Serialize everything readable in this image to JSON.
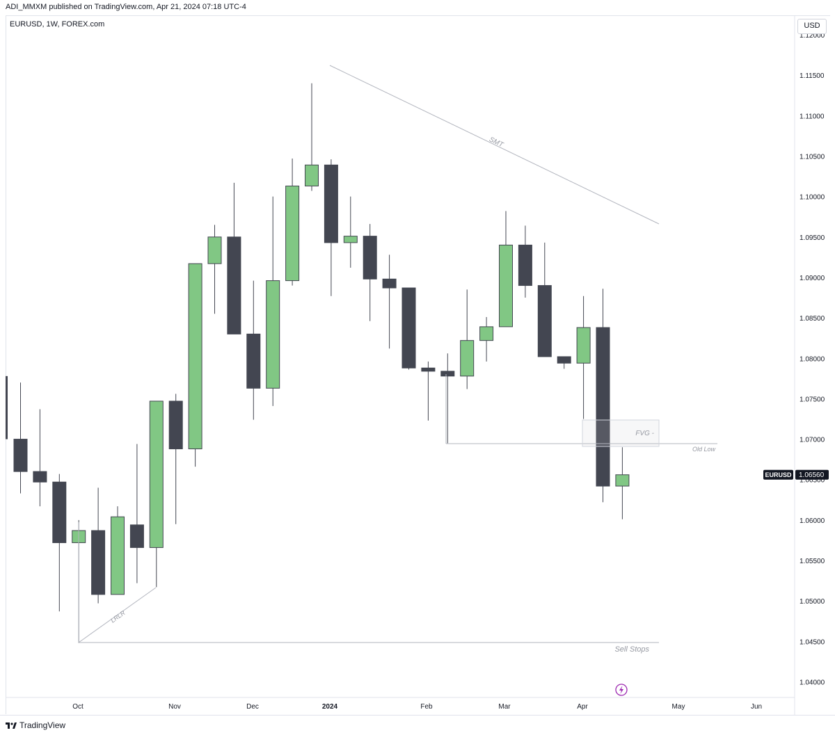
{
  "header": {
    "published_text": "ADI_MMXM published on TradingView.com, Apr 21, 2024 07:18 UTC-4",
    "symbol_legend": "EURUSD, 1W, FOREX.com"
  },
  "price_axis": {
    "currency": "USD",
    "ticks": [
      "1.12000",
      "1.11500",
      "1.11000",
      "1.10500",
      "1.10000",
      "1.09500",
      "1.09000",
      "1.08500",
      "1.08000",
      "1.07500",
      "1.07000",
      "1.06500",
      "1.06000",
      "1.05500",
      "1.05000",
      "1.04500",
      "1.04000"
    ],
    "last_price_label": "1.06560",
    "last_price_symbol": "EURUSD"
  },
  "time_axis": {
    "labels": [
      "Oct",
      "Nov",
      "Dec",
      "2024",
      "Feb",
      "Mar",
      "Apr",
      "May",
      "Jun"
    ],
    "bold_label": "2024"
  },
  "footer": {
    "brand": "TradingView"
  },
  "colors": {
    "bull": "#81c784",
    "bear": "#434651",
    "wick": "#434651",
    "grid": "#ffffff",
    "annotation": "#b2b5be"
  },
  "chart_data": {
    "type": "candlestick",
    "ylim": [
      1.0395,
      1.1205
    ],
    "candles": [
      {
        "o": 1.0778,
        "h": 1.0778,
        "l": 1.07,
        "c": 1.07
      },
      {
        "o": 1.07,
        "h": 1.077,
        "l": 1.0633,
        "c": 1.066
      },
      {
        "o": 1.066,
        "h": 1.0737,
        "l": 1.0617,
        "c": 1.0647
      },
      {
        "o": 1.0647,
        "h": 1.0657,
        "l": 1.0487,
        "c": 1.0572
      },
      {
        "o": 1.0572,
        "h": 1.06,
        "l": 1.0448,
        "c": 1.0587
      },
      {
        "o": 1.0587,
        "h": 1.064,
        "l": 1.0497,
        "c": 1.0508
      },
      {
        "o": 1.0508,
        "h": 1.0617,
        "l": 1.0508,
        "c": 1.0604
      },
      {
        "o": 1.0594,
        "h": 1.0694,
        "l": 1.0522,
        "c": 1.0566
      },
      {
        "o": 1.0566,
        "h": 1.0747,
        "l": 1.0517,
        "c": 1.0747
      },
      {
        "o": 1.0747,
        "h": 1.0756,
        "l": 1.0595,
        "c": 1.0688
      },
      {
        "o": 1.0688,
        "h": 1.0917,
        "l": 1.0666,
        "c": 1.0917
      },
      {
        "o": 1.0917,
        "h": 1.0965,
        "l": 1.0855,
        "c": 1.095
      },
      {
        "o": 1.095,
        "h": 1.1017,
        "l": 1.083,
        "c": 1.083
      },
      {
        "o": 1.083,
        "h": 1.0896,
        "l": 1.0724,
        "c": 1.0763
      },
      {
        "o": 1.0763,
        "h": 1.1,
        "l": 1.0741,
        "c": 1.0896
      },
      {
        "o": 1.0896,
        "h": 1.1047,
        "l": 1.089,
        "c": 1.1013
      },
      {
        "o": 1.1013,
        "h": 1.114,
        "l": 1.1007,
        "c": 1.1039
      },
      {
        "o": 1.1039,
        "h": 1.1046,
        "l": 1.0877,
        "c": 1.0943
      },
      {
        "o": 1.0943,
        "h": 1.1,
        "l": 1.0912,
        "c": 1.0951
      },
      {
        "o": 1.0951,
        "h": 1.0966,
        "l": 1.0846,
        "c": 1.0898
      },
      {
        "o": 1.0898,
        "h": 1.0928,
        "l": 1.0812,
        "c": 1.0887
      },
      {
        "o": 1.0887,
        "h": 1.0887,
        "l": 1.0786,
        "c": 1.0788
      },
      {
        "o": 1.0788,
        "h": 1.0796,
        "l": 1.0723,
        "c": 1.0784
      },
      {
        "o": 1.0784,
        "h": 1.0806,
        "l": 1.0695,
        "c": 1.0778
      },
      {
        "o": 1.0778,
        "h": 1.0885,
        "l": 1.0762,
        "c": 1.0822
      },
      {
        "o": 1.0822,
        "h": 1.0851,
        "l": 1.0796,
        "c": 1.0839
      },
      {
        "o": 1.0839,
        "h": 1.0982,
        "l": 1.0839,
        "c": 1.094
      },
      {
        "o": 1.094,
        "h": 1.0964,
        "l": 1.0875,
        "c": 1.089
      },
      {
        "o": 1.089,
        "h": 1.0943,
        "l": 1.0802,
        "c": 1.0802
      },
      {
        "o": 1.0802,
        "h": 1.0802,
        "l": 1.0787,
        "c": 1.0794
      },
      {
        "o": 1.0794,
        "h": 1.0877,
        "l": 1.0725,
        "c": 1.0838
      },
      {
        "o": 1.0838,
        "h": 1.0886,
        "l": 1.0622,
        "c": 1.0642
      },
      {
        "o": 1.0642,
        "h": 1.069,
        "l": 1.0601,
        "c": 1.0656
      }
    ],
    "annotations": [
      {
        "type": "label",
        "text": "SMT"
      },
      {
        "type": "label",
        "text": "LRLR"
      },
      {
        "type": "label",
        "text": "FVG -"
      },
      {
        "type": "label",
        "text": "Old Low"
      },
      {
        "type": "label",
        "text": "Sell Stops"
      }
    ]
  }
}
